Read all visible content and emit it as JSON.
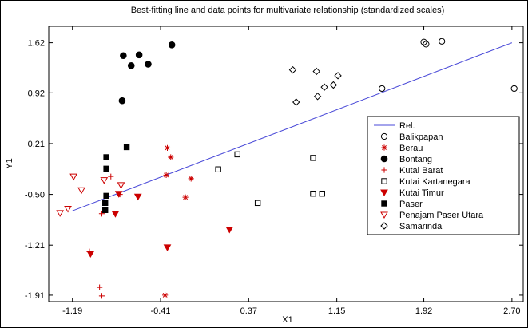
{
  "chart_data": {
    "type": "scatter",
    "title": "Best-fitting line and data points for multivariate relationship (standardized scales)",
    "xlabel": "X1",
    "ylabel": "Y1",
    "xlim": [
      -1.4,
      2.8
    ],
    "ylim": [
      -2.0,
      1.85
    ],
    "xticks": [
      "-1.19",
      "-0.41",
      "0.37",
      "1.15",
      "1.92",
      "2.70"
    ],
    "yticks": [
      "1.62",
      "0.92",
      "0.21",
      "-0.50",
      "-1.21",
      "-1.91"
    ],
    "legend_position": "right",
    "fit_line": {
      "name": "Rel.",
      "color": "#4a4ad8",
      "x": [
        -1.19,
        2.7
      ],
      "y": [
        -0.73,
        1.62
      ]
    },
    "series": [
      {
        "name": "Balikpapan",
        "marker": "circle-open",
        "color": "#000000",
        "points": [
          [
            1.55,
            0.98
          ],
          [
            1.92,
            1.63
          ],
          [
            1.94,
            1.6
          ],
          [
            2.08,
            1.64
          ],
          [
            2.72,
            0.98
          ]
        ]
      },
      {
        "name": "Berau",
        "marker": "asterisk",
        "color": "#cc0000",
        "points": [
          [
            -0.35,
            0.15
          ],
          [
            -0.32,
            0.02
          ],
          [
            -0.36,
            -0.23
          ],
          [
            -0.14,
            -0.28
          ],
          [
            -0.19,
            -0.54
          ],
          [
            -0.37,
            -1.91
          ]
        ]
      },
      {
        "name": "Bontang",
        "marker": "circle-filled",
        "color": "#000000",
        "points": [
          [
            -0.74,
            1.44
          ],
          [
            -0.6,
            1.45
          ],
          [
            -0.67,
            1.3
          ],
          [
            -0.52,
            1.32
          ],
          [
            -0.31,
            1.59
          ],
          [
            -0.75,
            0.81
          ]
        ]
      },
      {
        "name": "Kutai Barat",
        "marker": "plus",
        "color": "#cc0000",
        "points": [
          [
            -0.85,
            -0.25
          ],
          [
            -0.77,
            -0.5
          ],
          [
            -0.93,
            -0.77
          ],
          [
            -1.04,
            -1.3
          ],
          [
            -0.95,
            -1.8
          ],
          [
            -0.93,
            -1.92
          ]
        ]
      },
      {
        "name": "Kutai Kartanegara",
        "marker": "square-open",
        "color": "#000000",
        "points": [
          [
            0.1,
            -0.15
          ],
          [
            0.27,
            0.06
          ],
          [
            0.45,
            -0.62
          ],
          [
            0.94,
            0.01
          ],
          [
            0.94,
            -0.49
          ],
          [
            1.02,
            -0.49
          ]
        ]
      },
      {
        "name": "Kutai Timur",
        "marker": "triangle-down-filled",
        "color": "#cc0000",
        "points": [
          [
            -0.78,
            -0.49
          ],
          [
            -0.61,
            -0.53
          ],
          [
            -0.81,
            -0.77
          ],
          [
            -0.35,
            -1.24
          ],
          [
            -1.03,
            -1.33
          ],
          [
            0.2,
            -0.99
          ]
        ]
      },
      {
        "name": "Paser",
        "marker": "square-filled",
        "color": "#000000",
        "points": [
          [
            -0.89,
            0.02
          ],
          [
            -0.71,
            0.16
          ],
          [
            -0.89,
            -0.14
          ],
          [
            -0.89,
            -0.52
          ],
          [
            -0.9,
            -0.62
          ],
          [
            -0.9,
            -0.72
          ]
        ]
      },
      {
        "name": "Penajam Paser Utara",
        "marker": "triangle-down-open",
        "color": "#cc0000",
        "points": [
          [
            -1.18,
            -0.25
          ],
          [
            -0.91,
            -0.3
          ],
          [
            -1.11,
            -0.44
          ],
          [
            -0.76,
            -0.37
          ],
          [
            -1.3,
            -0.76
          ],
          [
            -1.23,
            -0.7
          ]
        ]
      },
      {
        "name": "Samarinda",
        "marker": "diamond-open",
        "color": "#000000",
        "points": [
          [
            0.76,
            1.24
          ],
          [
            1.16,
            1.16
          ],
          [
            1.12,
            1.03
          ],
          [
            0.97,
            1.22
          ],
          [
            1.04,
            1.0
          ],
          [
            0.98,
            0.87
          ],
          [
            0.79,
            0.79
          ]
        ]
      }
    ]
  }
}
